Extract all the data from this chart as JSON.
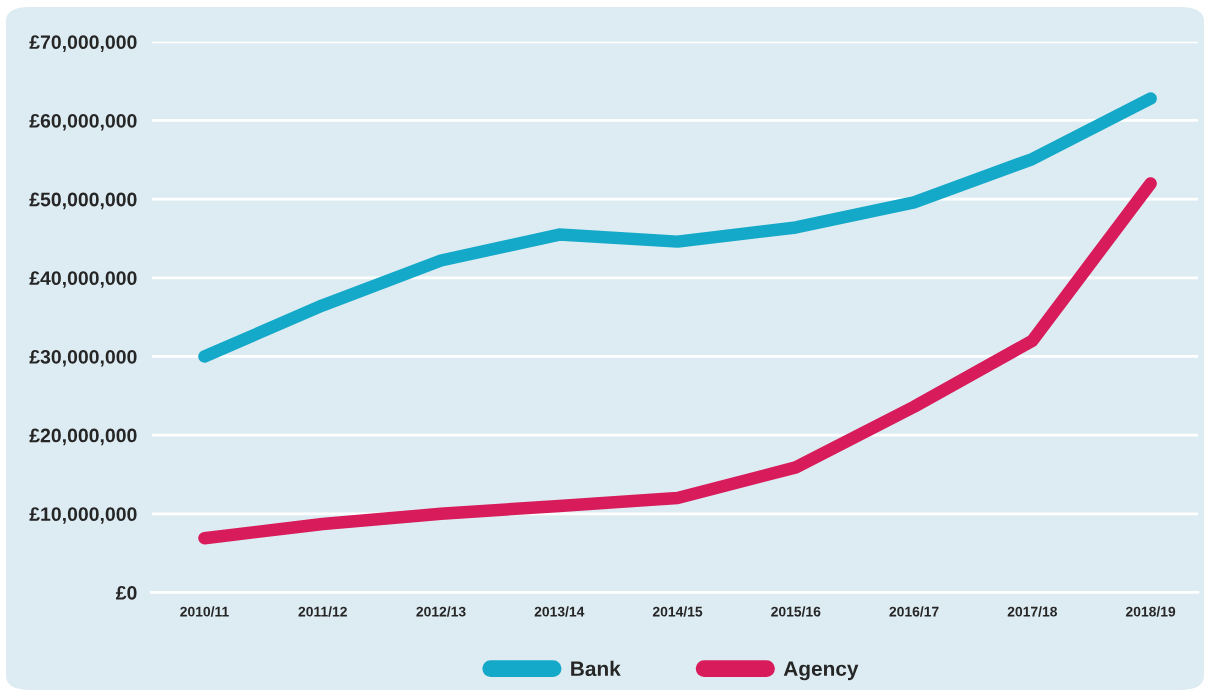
{
  "chart_data": {
    "type": "line",
    "categories": [
      "2010/11",
      "2011/12",
      "2012/13",
      "2013/14",
      "2014/15",
      "2015/16",
      "2016/17",
      "2017/18",
      "2018/19"
    ],
    "series": [
      {
        "name": "Bank",
        "color": "#14a9c8",
        "values": [
          30000000,
          36500000,
          42200000,
          45500000,
          44600000,
          46400000,
          49600000,
          55100000,
          62800000
        ]
      },
      {
        "name": "Agency",
        "color": "#d81b5a",
        "values": [
          6900000,
          8700000,
          10000000,
          11000000,
          12000000,
          15900000,
          23600000,
          32000000,
          52000000
        ]
      }
    ],
    "ylim": [
      0,
      70000000
    ],
    "yticks": [
      {
        "value": 0,
        "label": "£0"
      },
      {
        "value": 10000000,
        "label": "£10,000,000"
      },
      {
        "value": 20000000,
        "label": "£20,000,000"
      },
      {
        "value": 30000000,
        "label": "£30,000,000"
      },
      {
        "value": 40000000,
        "label": "£40,000,000"
      },
      {
        "value": 50000000,
        "label": "£50,000,000"
      },
      {
        "value": 60000000,
        "label": "£60,000,000"
      },
      {
        "value": 70000000,
        "label": "£70,000,000"
      }
    ],
    "grid": "y",
    "legend": "bottom",
    "marker": "none",
    "line_style": "solid"
  }
}
